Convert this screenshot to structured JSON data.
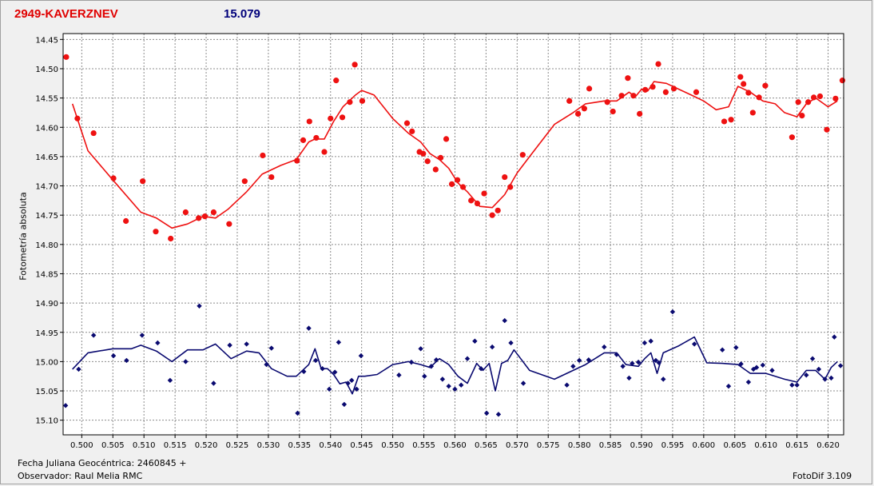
{
  "header": {
    "object_name": "2949-KAVERZNEV",
    "mean_value": "15.079"
  },
  "footer": {
    "fecha": "Fecha Juliana Geocéntrica: 2460845 +",
    "observer": "Observador: Raul Melia RMC",
    "version": "FotoDif 3.109"
  },
  "colors": {
    "variable": "#ee1111",
    "comparison": "#0a0a70",
    "grid": "#8c8c8c",
    "plot_bg": "#ffffff",
    "window_bg": "#f0f0f0"
  },
  "chart_data": {
    "type": "scatter",
    "ylabel": "Fotometría absoluta",
    "xlabel": "",
    "xlim": [
      0.497,
      0.6225
    ],
    "ylim": [
      14.44,
      15.125
    ],
    "y_inverted": true,
    "grid": true,
    "x_ticks": [
      "0.500",
      "0.505",
      "0.510",
      "0.515",
      "0.520",
      "0.525",
      "0.530",
      "0.535",
      "0.540",
      "0.545",
      "0.550",
      "0.555",
      "0.560",
      "0.565",
      "0.570",
      "0.575",
      "0.580",
      "0.585",
      "0.590",
      "0.595",
      "0.600",
      "0.605",
      "0.610",
      "0.615",
      "0.620"
    ],
    "y_ticks": [
      "14.45",
      "14.50",
      "14.55",
      "14.60",
      "14.65",
      "14.70",
      "14.75",
      "14.80",
      "14.85",
      "14.90",
      "14.95",
      "15.00",
      "15.05",
      "15.10"
    ],
    "series": [
      {
        "role": "variable-points",
        "marker": "dot",
        "x": [
          0.4975,
          0.4993,
          0.5019,
          0.5051,
          0.5071,
          0.5098,
          0.5119,
          0.5143,
          0.5167,
          0.5188,
          0.5198,
          0.5212,
          0.5237,
          0.5262,
          0.5291,
          0.5305,
          0.5346,
          0.5356,
          0.5366,
          0.5377,
          0.539,
          0.54,
          0.5409,
          0.5419,
          0.5431,
          0.5439,
          0.5451,
          0.5523,
          0.5531,
          0.5543,
          0.5549,
          0.5556,
          0.5569,
          0.5577,
          0.5586,
          0.5595,
          0.5604,
          0.5613,
          0.5626,
          0.5636,
          0.5647,
          0.566,
          0.5669,
          0.568,
          0.5689,
          0.5709,
          0.5784,
          0.5798,
          0.5808,
          0.5816,
          0.5845,
          0.5854,
          0.5868,
          0.5878,
          0.5887,
          0.5897,
          0.5906,
          0.5918,
          0.5927,
          0.5939,
          0.5952,
          0.5988,
          0.6033,
          0.6044,
          0.6059,
          0.6064,
          0.6072,
          0.6079,
          0.6089,
          0.6099,
          0.6142,
          0.6152,
          0.6158,
          0.6168,
          0.6177,
          0.6187,
          0.6198,
          0.6212,
          0.6223
        ],
        "y": [
          14.48,
          14.585,
          14.61,
          14.687,
          14.76,
          14.692,
          14.778,
          14.79,
          14.745,
          14.755,
          14.752,
          14.745,
          14.765,
          14.692,
          14.648,
          14.685,
          14.657,
          14.622,
          14.59,
          14.618,
          14.642,
          14.585,
          14.52,
          14.583,
          14.557,
          14.493,
          14.555,
          14.593,
          14.607,
          14.642,
          14.645,
          14.658,
          14.672,
          14.652,
          14.62,
          14.697,
          14.69,
          14.702,
          14.725,
          14.73,
          14.713,
          14.75,
          14.742,
          14.685,
          14.702,
          14.647,
          14.555,
          14.577,
          14.568,
          14.534,
          14.557,
          14.573,
          14.546,
          14.516,
          14.546,
          14.577,
          14.536,
          14.531,
          14.492,
          14.54,
          14.534,
          14.54,
          14.59,
          14.587,
          14.514,
          14.526,
          14.541,
          14.575,
          14.549,
          14.529,
          14.617,
          14.557,
          14.58,
          14.557,
          14.549,
          14.547,
          14.604,
          14.551,
          14.52
        ]
      },
      {
        "role": "variable-average",
        "marker": "line",
        "x": [
          0.4985,
          0.501,
          0.505,
          0.5095,
          0.512,
          0.5145,
          0.517,
          0.5195,
          0.5215,
          0.5235,
          0.5265,
          0.529,
          0.532,
          0.5345,
          0.5365,
          0.5375,
          0.539,
          0.5405,
          0.542,
          0.544,
          0.545,
          0.547,
          0.55,
          0.5525,
          0.5545,
          0.556,
          0.5575,
          0.559,
          0.5605,
          0.562,
          0.564,
          0.566,
          0.568,
          0.57,
          0.572,
          0.576,
          0.579,
          0.581,
          0.584,
          0.586,
          0.588,
          0.589,
          0.59,
          0.591,
          0.592,
          0.594,
          0.596,
          0.598,
          0.6,
          0.602,
          0.604,
          0.6055,
          0.6075,
          0.6095,
          0.6115,
          0.613,
          0.615,
          0.6165,
          0.618,
          0.62,
          0.6215
        ],
        "y": [
          14.56,
          14.64,
          14.69,
          14.745,
          14.755,
          14.772,
          14.765,
          14.752,
          14.755,
          14.74,
          14.71,
          14.68,
          14.665,
          14.655,
          14.625,
          14.62,
          14.62,
          14.59,
          14.565,
          14.545,
          14.537,
          14.545,
          14.585,
          14.61,
          14.625,
          14.645,
          14.655,
          14.67,
          14.695,
          14.71,
          14.735,
          14.737,
          14.715,
          14.678,
          14.65,
          14.595,
          14.575,
          14.56,
          14.555,
          14.555,
          14.54,
          14.548,
          14.535,
          14.538,
          14.522,
          14.525,
          14.535,
          14.545,
          14.555,
          14.57,
          14.565,
          14.53,
          14.54,
          14.555,
          14.56,
          14.575,
          14.582,
          14.56,
          14.55,
          14.565,
          14.555
        ]
      },
      {
        "role": "comparison-points",
        "marker": "diamond",
        "x": [
          0.4974,
          0.4995,
          0.5019,
          0.5051,
          0.5072,
          0.5097,
          0.5122,
          0.5142,
          0.5167,
          0.5189,
          0.5212,
          0.5238,
          0.5265,
          0.5297,
          0.5305,
          0.5347,
          0.5357,
          0.5365,
          0.5376,
          0.5387,
          0.5398,
          0.5407,
          0.5413,
          0.5422,
          0.5428,
          0.5434,
          0.5442,
          0.5449,
          0.551,
          0.553,
          0.5545,
          0.5551,
          0.5562,
          0.557,
          0.558,
          0.559,
          0.56,
          0.561,
          0.562,
          0.5632,
          0.5642,
          0.5651,
          0.566,
          0.567,
          0.568,
          0.569,
          0.571,
          0.578,
          0.579,
          0.58,
          0.5815,
          0.584,
          0.586,
          0.587,
          0.588,
          0.5885,
          0.5895,
          0.5905,
          0.5915,
          0.5923,
          0.5928,
          0.5935,
          0.595,
          0.5985,
          0.603,
          0.604,
          0.6052,
          0.606,
          0.6072,
          0.608,
          0.6085,
          0.6095,
          0.611,
          0.6142,
          0.615,
          0.6165,
          0.6175,
          0.6185,
          0.6195,
          0.6205,
          0.621,
          0.622
        ],
        "y": [
          15.075,
          15.013,
          14.955,
          14.99,
          14.998,
          14.955,
          14.968,
          15.032,
          15,
          14.905,
          15.037,
          14.972,
          14.97,
          15.005,
          14.977,
          15.088,
          15.017,
          14.943,
          14.998,
          15.012,
          15.047,
          15.018,
          14.967,
          15.073,
          15.037,
          15.032,
          15.047,
          14.99,
          15.023,
          15.001,
          14.978,
          15.025,
          15.008,
          14.997,
          15.03,
          15.042,
          15.047,
          15.04,
          14.995,
          14.965,
          15.012,
          15.088,
          14.975,
          15.09,
          14.93,
          14.968,
          15.037,
          15.04,
          15.008,
          14.998,
          14.997,
          14.975,
          14.988,
          15.008,
          15.028,
          15.003,
          15.001,
          14.968,
          14.965,
          14.998,
          15.002,
          15.03,
          14.915,
          14.97,
          14.98,
          15.042,
          14.976,
          15.004,
          15.035,
          15.013,
          15.01,
          15.006,
          15.015,
          15.04,
          15.04,
          15.023,
          14.995,
          15.013,
          15.03,
          15.028,
          14.958,
          15.007
        ]
      },
      {
        "role": "comparison-average",
        "marker": "line",
        "x": [
          0.4985,
          0.501,
          0.505,
          0.508,
          0.5095,
          0.512,
          0.5145,
          0.517,
          0.5195,
          0.5215,
          0.524,
          0.5265,
          0.5285,
          0.5305,
          0.533,
          0.5345,
          0.5365,
          0.5375,
          0.5385,
          0.5395,
          0.5405,
          0.5415,
          0.5425,
          0.5435,
          0.5445,
          0.5455,
          0.5475,
          0.55,
          0.5525,
          0.5545,
          0.556,
          0.5575,
          0.559,
          0.5605,
          0.562,
          0.5635,
          0.5645,
          0.5655,
          0.5665,
          0.5675,
          0.5685,
          0.5695,
          0.572,
          0.576,
          0.579,
          0.581,
          0.584,
          0.586,
          0.5875,
          0.5895,
          0.5905,
          0.5915,
          0.5925,
          0.5935,
          0.596,
          0.5985,
          0.6005,
          0.603,
          0.6055,
          0.6075,
          0.61,
          0.613,
          0.615,
          0.6165,
          0.618,
          0.6195,
          0.6205,
          0.6215
        ],
        "y": [
          15.013,
          14.985,
          14.978,
          14.978,
          14.972,
          14.982,
          15,
          14.98,
          14.98,
          14.97,
          14.995,
          14.982,
          14.985,
          15.012,
          15.025,
          15.025,
          15.005,
          14.978,
          15.012,
          15.012,
          15.022,
          15.038,
          15.035,
          15.055,
          15.025,
          15.025,
          15.022,
          15.005,
          15,
          15.005,
          15.01,
          14.995,
          15.005,
          15.025,
          15.037,
          15.003,
          15.015,
          15.003,
          15.05,
          15.003,
          14.998,
          14.98,
          15.015,
          15.03,
          15.015,
          15.005,
          14.985,
          14.985,
          15.005,
          15.008,
          14.995,
          14.985,
          15.02,
          14.985,
          14.973,
          14.958,
          15.002,
          15.003,
          15.005,
          15.02,
          15.02,
          15.03,
          15.035,
          15.015,
          15.015,
          15.03,
          15.01,
          15
        ]
      }
    ]
  }
}
